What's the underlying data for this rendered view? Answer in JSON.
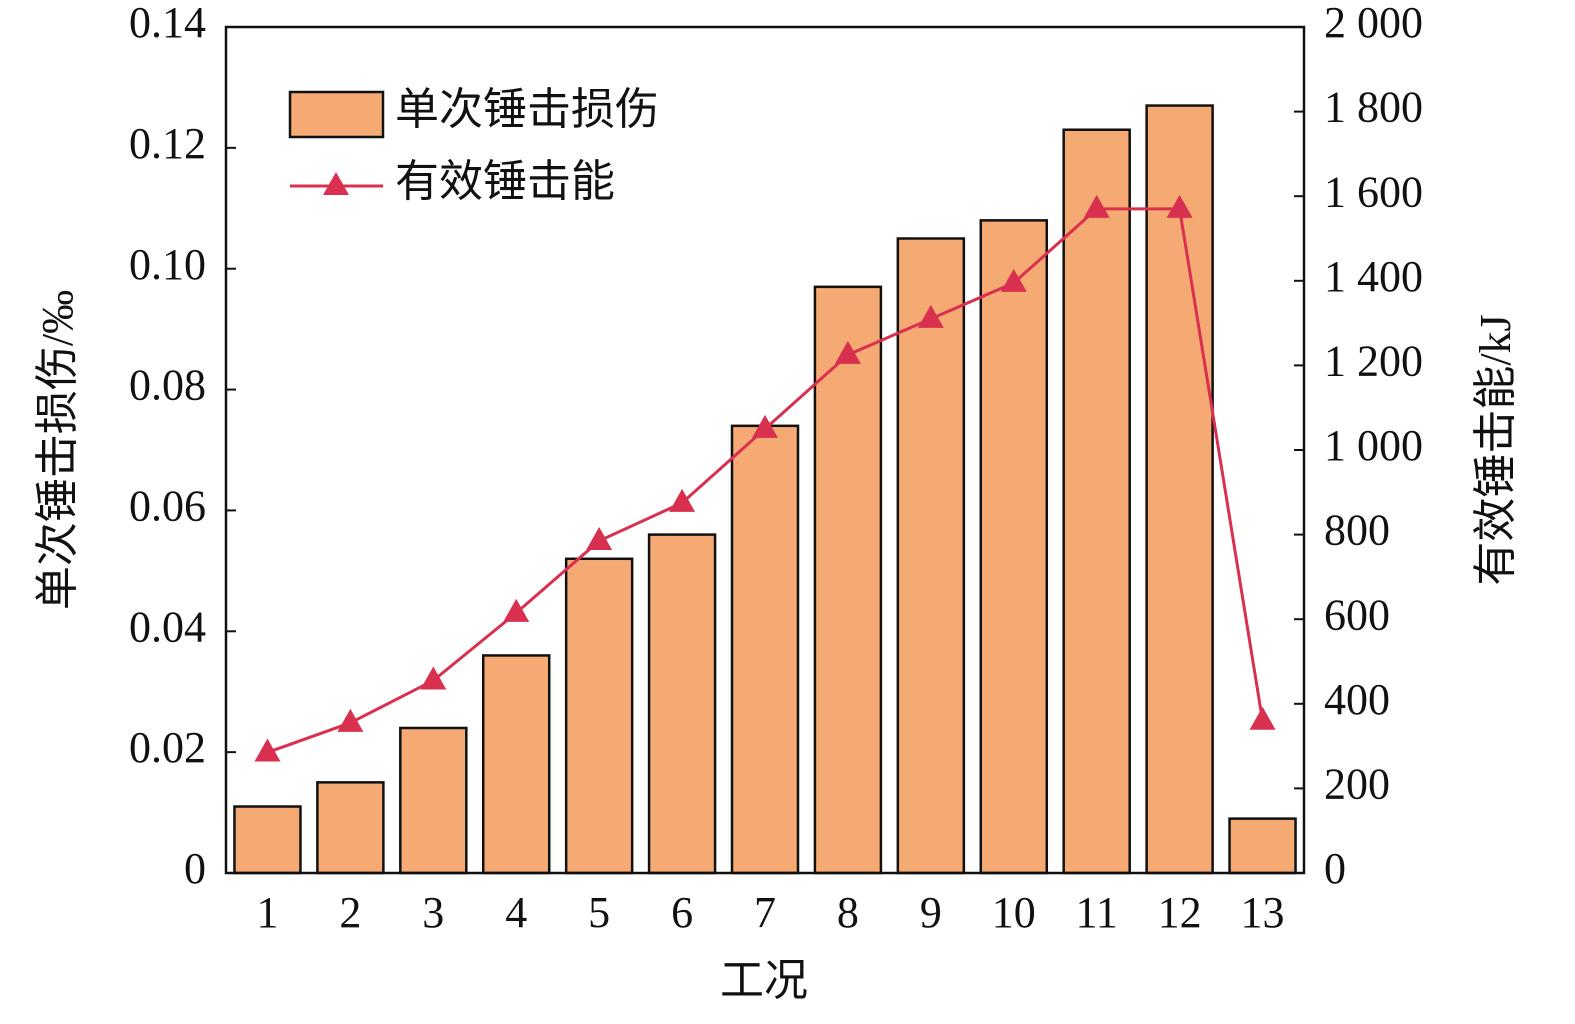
{
  "chart_data": {
    "type": "bar+line",
    "x_label": "工况",
    "y_label": "单次锤击损伤/‰",
    "y2_label": "有效锤击能/kJ",
    "categories": [
      "1",
      "2",
      "3",
      "4",
      "5",
      "6",
      "7",
      "8",
      "9",
      "10",
      "11",
      "12",
      "13"
    ],
    "series": [
      {
        "name": "单次锤击损伤",
        "type": "bar",
        "axis": "y",
        "color": "#f6aa73",
        "values": [
          0.011,
          0.015,
          0.024,
          0.036,
          0.052,
          0.056,
          0.074,
          0.097,
          0.105,
          0.108,
          0.123,
          0.127,
          0.009
        ]
      },
      {
        "name": "有效锤击能",
        "type": "line",
        "axis": "y2",
        "color": "#d8304e",
        "values": [
          285,
          355,
          455,
          615,
          785,
          875,
          1050,
          1225,
          1310,
          1395,
          1570,
          1570,
          360
        ]
      }
    ],
    "ylim": [
      0,
      0.14
    ],
    "yticks": [
      0,
      0.02,
      0.04,
      0.06,
      0.08,
      {
        "value": 0.1,
        "label": "0.10"
      },
      0.12,
      0.14
    ],
    "y2lim": [
      0,
      2000
    ],
    "y2ticks": [
      0,
      200,
      400,
      600,
      800,
      {
        "value": 1000,
        "label": "1 000"
      },
      {
        "value": 1200,
        "label": "1 200"
      },
      {
        "value": 1400,
        "label": "1 400"
      },
      {
        "value": 1600,
        "label": "1 600"
      },
      {
        "value": 1800,
        "label": "1 800"
      },
      {
        "value": 2000,
        "label": "2 000"
      }
    ],
    "legend": "upper left"
  }
}
